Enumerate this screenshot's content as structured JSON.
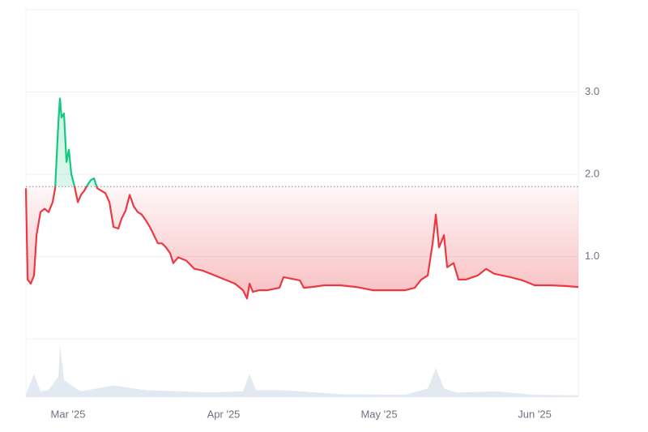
{
  "chart_data": {
    "type": "line",
    "x": [
      2.729,
      2.74,
      2.76,
      2.781,
      2.797,
      2.823,
      2.849,
      2.875,
      2.901,
      2.917,
      2.938,
      2.948,
      2.958,
      2.974,
      2.99,
      3.005,
      3.021,
      3.042,
      3.063,
      3.083,
      3.104,
      3.125,
      3.146,
      3.167,
      3.188,
      3.214,
      3.24,
      3.266,
      3.292,
      3.323,
      3.344,
      3.37,
      3.396,
      3.422,
      3.448,
      3.474,
      3.5,
      3.526,
      3.552,
      3.578,
      3.604,
      3.63,
      3.656,
      3.677,
      3.708,
      3.76,
      3.813,
      3.865,
      3.917,
      3.969,
      4.021,
      4.073,
      4.125,
      4.151,
      4.167,
      4.188,
      4.229,
      4.281,
      4.359,
      4.385,
      4.438,
      4.49,
      4.516,
      4.568,
      4.646,
      4.75,
      4.854,
      4.958,
      5.063,
      5.167,
      5.229,
      5.271,
      5.313,
      5.344,
      5.365,
      5.385,
      5.417,
      5.438,
      5.479,
      5.51,
      5.557,
      5.635,
      5.688,
      5.74,
      5.844,
      5.922,
      6.0,
      6.104,
      6.208,
      6.281
    ],
    "values": [
      1.83,
      0.72,
      0.67,
      0.77,
      1.26,
      1.54,
      1.58,
      1.54,
      1.66,
      1.83,
      2.64,
      2.92,
      2.69,
      2.74,
      2.15,
      2.3,
      2.0,
      1.85,
      1.66,
      1.75,
      1.8,
      1.87,
      1.93,
      1.95,
      1.83,
      1.8,
      1.77,
      1.66,
      1.36,
      1.34,
      1.46,
      1.56,
      1.75,
      1.61,
      1.54,
      1.51,
      1.44,
      1.36,
      1.26,
      1.16,
      1.16,
      1.11,
      1.04,
      0.92,
      0.99,
      0.95,
      0.85,
      0.83,
      0.79,
      0.75,
      0.71,
      0.67,
      0.59,
      0.49,
      0.67,
      0.57,
      0.59,
      0.59,
      0.62,
      0.75,
      0.73,
      0.71,
      0.62,
      0.63,
      0.65,
      0.65,
      0.63,
      0.59,
      0.59,
      0.59,
      0.62,
      0.72,
      0.77,
      1.16,
      1.51,
      1.11,
      1.26,
      0.87,
      0.92,
      0.72,
      0.72,
      0.77,
      0.85,
      0.79,
      0.75,
      0.71,
      0.65,
      0.65,
      0.64,
      0.63
    ],
    "reference": 1.85,
    "up_color": "#16c784",
    "down_color": "#ea3943",
    "xlim": [
      2.729,
      6.281
    ],
    "xticks": [
      {
        "value": 3,
        "label": "Mar '25"
      },
      {
        "value": 4,
        "label": "Apr '25"
      },
      {
        "value": 5,
        "label": "May '25"
      },
      {
        "value": 6,
        "label": "Jun '25"
      }
    ],
    "ylim": [
      0,
      4
    ],
    "yticks": [
      {
        "value": 1,
        "label": "1.0"
      },
      {
        "value": 2,
        "label": "2.0"
      },
      {
        "value": 3,
        "label": "3.0"
      }
    ],
    "grid": true,
    "volume": {
      "color": "#e3e9f1",
      "ylim": [
        0,
        100
      ],
      "x": [
        2.729,
        2.76,
        2.781,
        2.823,
        2.875,
        2.938,
        2.948,
        2.974,
        3.021,
        3.083,
        3.188,
        3.292,
        3.5,
        3.708,
        3.917,
        4.125,
        4.167,
        4.208,
        4.385,
        4.75,
        5.167,
        5.313,
        5.365,
        5.417,
        5.5,
        5.75,
        6.0,
        6.281
      ],
      "values": [
        5,
        25,
        40,
        10,
        12,
        35,
        90,
        30,
        20,
        10,
        15,
        20,
        12,
        10,
        8,
        10,
        40,
        12,
        12,
        5,
        4,
        15,
        50,
        15,
        8,
        10,
        4,
        3
      ]
    }
  }
}
